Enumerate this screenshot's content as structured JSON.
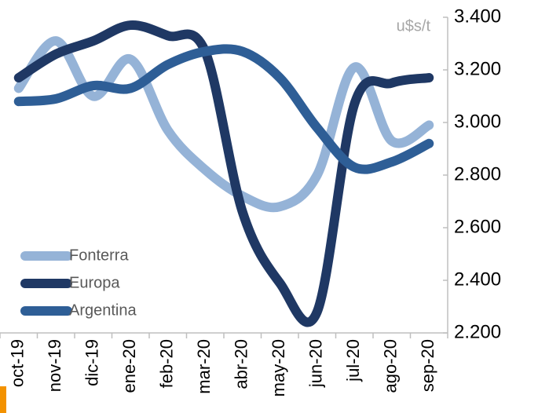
{
  "chart_data": {
    "type": "line",
    "y_label": "u$s/t",
    "categories": [
      "oct-19",
      "nov-19",
      "dic-19",
      "ene-20",
      "feb-20",
      "mar-20",
      "abr-20",
      "may-20",
      "jun-20",
      "jul-20",
      "ago-20",
      "sep-20"
    ],
    "series": [
      {
        "name": "Fonterra",
        "color": "#95b3d7",
        "values": [
          3130,
          3310,
          3100,
          3240,
          2970,
          2820,
          2720,
          2680,
          2800,
          3210,
          2930,
          2990
        ]
      },
      {
        "name": "Europa",
        "color": "#1f3864",
        "values": [
          3170,
          3260,
          3310,
          3370,
          3330,
          3270,
          2660,
          2390,
          2280,
          3070,
          3150,
          3170
        ]
      },
      {
        "name": "Argentina",
        "color": "#2e5e96",
        "values": [
          3080,
          3090,
          3140,
          3130,
          3220,
          3270,
          3270,
          3170,
          2980,
          2830,
          2850,
          2920
        ]
      }
    ],
    "ylim": [
      2200,
      3400
    ],
    "yticks": [
      {
        "value": 2200,
        "label": "2.200"
      },
      {
        "value": 2400,
        "label": "2.400"
      },
      {
        "value": 2600,
        "label": "2.600"
      },
      {
        "value": 2800,
        "label": "2.800"
      },
      {
        "value": 3000,
        "label": "3.000"
      },
      {
        "value": 3200,
        "label": "3.200"
      },
      {
        "value": 3400,
        "label": "3.400"
      }
    ],
    "legend": "lower left"
  }
}
